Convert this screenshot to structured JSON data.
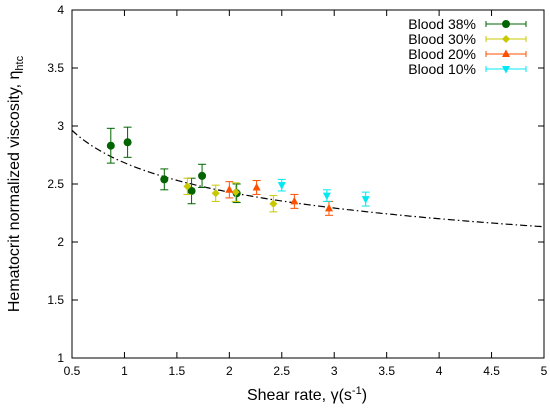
{
  "chart_data": {
    "type": "scatter",
    "xlabel_text": "Shear rate, ",
    "xlabel_symbol": "γ",
    "xlabel_unit_open": "(s",
    "xlabel_unit_exp": "-1",
    "xlabel_unit_close": ")",
    "ylabel_text": "Hematocrit normalized viscosity, η",
    "ylabel_sub": "htc",
    "xlim": [
      0.5,
      5
    ],
    "ylim": [
      1,
      4
    ],
    "xticks": [
      0.5,
      1,
      1.5,
      2,
      2.5,
      3,
      3.5,
      4,
      4.5,
      5
    ],
    "xtick_labels": [
      "0.5",
      "1",
      "1.5",
      "2",
      "2.5",
      "3",
      "3.5",
      "4",
      "4.5",
      "5"
    ],
    "yticks": [
      1,
      1.5,
      2,
      2.5,
      3,
      3.5,
      4
    ],
    "ytick_labels": [
      "1",
      "1.5",
      "2",
      "2.5",
      "3",
      "3.5",
      "4"
    ],
    "grid": false,
    "legend_position": "top-right",
    "series": [
      {
        "name": "Blood 38%",
        "color": "#006400",
        "marker": "circle",
        "points": [
          {
            "x": 0.87,
            "y": 2.83,
            "err": 0.15
          },
          {
            "x": 1.03,
            "y": 2.86,
            "err": 0.13
          },
          {
            "x": 1.38,
            "y": 2.54,
            "err": 0.09
          },
          {
            "x": 1.64,
            "y": 2.44,
            "err": 0.11
          },
          {
            "x": 1.74,
            "y": 2.57,
            "err": 0.1
          },
          {
            "x": 2.07,
            "y": 2.42,
            "err": 0.08
          }
        ]
      },
      {
        "name": "Blood 30%",
        "color": "#c8c800",
        "marker": "diamond",
        "points": [
          {
            "x": 1.6,
            "y": 2.48,
            "err": 0.07
          },
          {
            "x": 1.87,
            "y": 2.42,
            "err": 0.07
          },
          {
            "x": 2.06,
            "y": 2.43,
            "err": 0.08
          },
          {
            "x": 2.42,
            "y": 2.33,
            "err": 0.07
          }
        ]
      },
      {
        "name": "Blood 20%",
        "color": "#ff5000",
        "marker": "triangle-up",
        "points": [
          {
            "x": 2.0,
            "y": 2.45,
            "err": 0.07
          },
          {
            "x": 2.26,
            "y": 2.47,
            "err": 0.06
          },
          {
            "x": 2.62,
            "y": 2.35,
            "err": 0.06
          },
          {
            "x": 2.95,
            "y": 2.29,
            "err": 0.06
          }
        ]
      },
      {
        "name": "Blood 10%",
        "color": "#00e8f0",
        "marker": "triangle-down",
        "points": [
          {
            "x": 2.5,
            "y": 2.49,
            "err": 0.05
          },
          {
            "x": 2.93,
            "y": 2.4,
            "err": 0.05
          },
          {
            "x": 3.3,
            "y": 2.37,
            "err": 0.06
          }
        ]
      }
    ],
    "fit_curve": {
      "style": "dash-dot",
      "color": "#000000",
      "form": "y = a * x^(-b)",
      "a": 2.683,
      "b": 0.143
    }
  }
}
